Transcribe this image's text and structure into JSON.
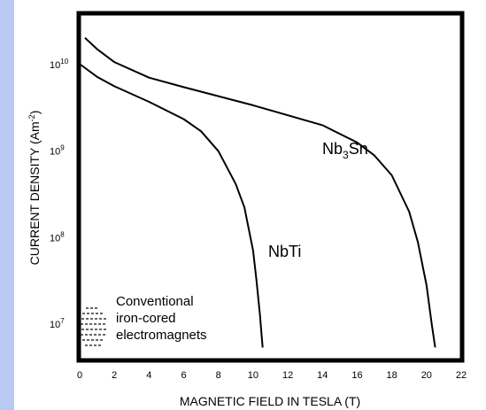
{
  "chart_data": {
    "type": "line",
    "xlabel": "MAGNETIC FIELD IN TESLA (T)",
    "ylabel_main": "CURRENT DENSITY (Am",
    "ylabel_exp": "-2",
    "ylabel_close": ")",
    "xlim": [
      0,
      22
    ],
    "ylim": [
      6.7,
      10.5
    ],
    "y_scale": "log",
    "x_ticks": [
      "0",
      "2",
      "4",
      "6",
      "8",
      "10",
      "12",
      "14",
      "16",
      "18",
      "20",
      "22"
    ],
    "x_tick_values": [
      0,
      2,
      4,
      6,
      8,
      10,
      12,
      14,
      16,
      18,
      20,
      22
    ],
    "y_ticks": [
      {
        "base": "10",
        "exp": "10",
        "value": 10
      },
      {
        "base": "10",
        "exp": "9",
        "value": 9
      },
      {
        "base": "10",
        "exp": "8",
        "value": 8
      },
      {
        "base": "10",
        "exp": "7",
        "value": 7
      }
    ],
    "grid": false,
    "series": [
      {
        "name": "NbTi",
        "label_main": "NbTi",
        "label_sub": "",
        "label_tail": "",
        "x": [
          0.05,
          1,
          2,
          4,
          6,
          7,
          8,
          9,
          9.5,
          10,
          10.2,
          10.4,
          10.5,
          10.55
        ],
        "y": [
          10.0,
          9.86,
          9.75,
          9.57,
          9.37,
          9.23,
          9.0,
          8.62,
          8.35,
          7.85,
          7.5,
          7.1,
          6.85,
          6.73
        ]
      },
      {
        "name": "Nb3Sn",
        "label_main": "Nb",
        "label_sub": "3",
        "label_tail": "Sn",
        "x": [
          0.3,
          1,
          2,
          4,
          6,
          10,
          14,
          16,
          17,
          18,
          19,
          19.5,
          20,
          20.3,
          20.5
        ],
        "y": [
          10.31,
          10.18,
          10.03,
          9.85,
          9.74,
          9.53,
          9.3,
          9.1,
          8.95,
          8.72,
          8.3,
          7.95,
          7.45,
          7.0,
          6.73
        ]
      }
    ],
    "annotation": [
      "Conventional",
      "iron-cored",
      "electromagnets"
    ]
  }
}
